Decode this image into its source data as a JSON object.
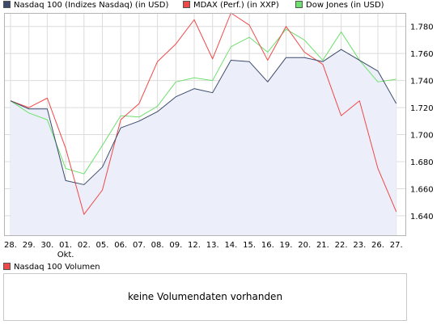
{
  "legend": [
    {
      "label": "Nasdaq 100 (Indizes Nasdaq) (in USD)",
      "color": "#3c4a6b"
    },
    {
      "label": "MDAX (Perf.) (in XXP)",
      "color": "#f04848"
    },
    {
      "label": "Dow Jones (in USD)",
      "color": "#6ee06e"
    }
  ],
  "chart_data": {
    "type": "line",
    "categories": [
      "28.",
      "29.",
      "30.",
      "01.",
      "02.",
      "05.",
      "06.",
      "07.",
      "08.",
      "09.",
      "12.",
      "13.",
      "14.",
      "15.",
      "16.",
      "19.",
      "20.",
      "21.",
      "22.",
      "23.",
      "26.",
      "27."
    ],
    "month_label": {
      "category": "01.",
      "text": "Okt."
    },
    "y_ticks": [
      "1.640",
      "1.660",
      "1.680",
      "1.700",
      "1.720",
      "1.740",
      "1.760",
      "1.780"
    ],
    "ylim": [
      1.625,
      1.79
    ],
    "grid": true,
    "legend_position": "top",
    "series": [
      {
        "name": "Nasdaq 100 (Indizes Nasdaq) (in USD)",
        "color": "#3c4a6b",
        "fill": "#eceff9",
        "values": [
          1.725,
          1.719,
          1.719,
          1.666,
          1.663,
          1.676,
          1.705,
          1.71,
          1.717,
          1.728,
          1.734,
          1.731,
          1.755,
          1.754,
          1.739,
          1.757,
          1.757,
          1.754,
          1.763,
          1.755,
          1.747,
          1.723
        ]
      },
      {
        "name": "MDAX (Perf.) (in XXP)",
        "color": "#f04848",
        "values": [
          1.725,
          1.72,
          1.727,
          1.69,
          1.641,
          1.659,
          1.711,
          1.723,
          1.754,
          1.767,
          1.785,
          1.756,
          1.79,
          1.781,
          1.755,
          1.78,
          1.761,
          1.752,
          1.714,
          1.725,
          1.675,
          1.643
        ]
      },
      {
        "name": "Dow Jones (in USD)",
        "color": "#6ee06e",
        "values": [
          1.725,
          1.716,
          1.711,
          1.675,
          1.671,
          1.692,
          1.714,
          1.713,
          1.721,
          1.739,
          1.742,
          1.74,
          1.765,
          1.772,
          1.761,
          1.778,
          1.77,
          1.755,
          1.776,
          1.755,
          1.739,
          1.741
        ]
      }
    ]
  },
  "volume": {
    "legend_label": "Nasdaq 100 Volumen",
    "legend_color": "#f04848",
    "message": "keine Volumendaten vorhanden"
  }
}
